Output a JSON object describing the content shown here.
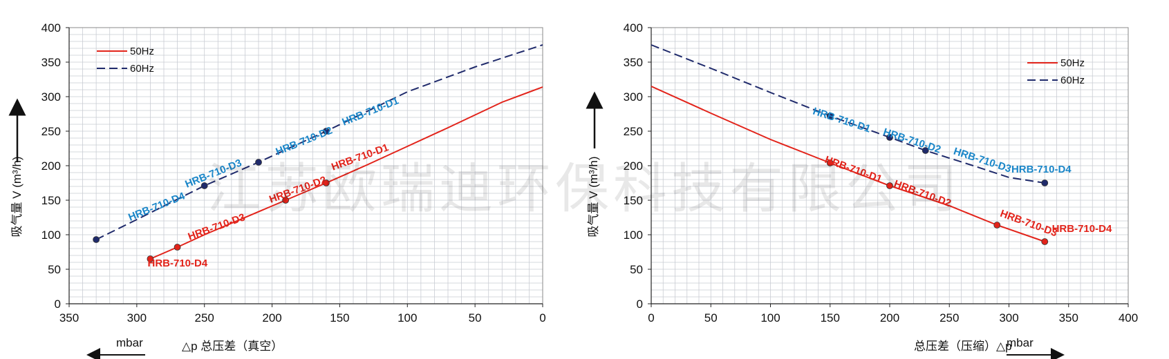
{
  "watermark": "江苏欧瑞迪环保科技有限公司",
  "colors": {
    "series50": "#e2231a",
    "series60": "#1f2a6b",
    "label50": "#e2231a",
    "label60": "#1a86c8",
    "grid": "#c9ccd3",
    "arrow": "#111111"
  },
  "chart_data": [
    {
      "type": "line",
      "title": "",
      "xlabel": "△p 总压差（真空）",
      "xunit": "mbar",
      "ylabel": "吸气量 V (m³/h)",
      "xlim": [
        350,
        0
      ],
      "ylim": [
        0,
        400
      ],
      "xticks": [
        350,
        300,
        250,
        200,
        150,
        100,
        50,
        0
      ],
      "yticks": [
        0,
        50,
        100,
        150,
        200,
        250,
        300,
        350,
        400
      ],
      "grid": true,
      "legend_position": "top-left",
      "series": [
        {
          "name": "50Hz",
          "style": "solid",
          "color": "#e2231a",
          "points": [
            [
              290,
              65
            ],
            [
              270,
              82
            ],
            [
              250,
              100
            ],
            [
              190,
              150
            ],
            [
              160,
              175
            ],
            [
              130,
              201
            ],
            [
              100,
              228
            ],
            [
              70,
              255
            ],
            [
              30,
              292
            ],
            [
              0,
              314
            ]
          ]
        },
        {
          "name": "60Hz",
          "style": "dashed",
          "color": "#1f2a6b",
          "points": [
            [
              330,
              93
            ],
            [
              300,
              122
            ],
            [
              250,
              171
            ],
            [
              210,
              205
            ],
            [
              160,
              250
            ],
            [
              100,
              307
            ],
            [
              50,
              343
            ],
            [
              0,
              375
            ]
          ]
        }
      ],
      "markers": [
        {
          "x": 290,
          "y": 65,
          "series": 0
        },
        {
          "x": 270,
          "y": 82,
          "series": 0
        },
        {
          "x": 190,
          "y": 150,
          "series": 0
        },
        {
          "x": 160,
          "y": 175,
          "series": 0
        },
        {
          "x": 330,
          "y": 93,
          "series": 1
        },
        {
          "x": 250,
          "y": 171,
          "series": 1
        },
        {
          "x": 210,
          "y": 205,
          "series": 1
        },
        {
          "x": 160,
          "y": 250,
          "series": 1
        }
      ],
      "annotations": [
        {
          "text": "HRB-710-D4",
          "x": 292,
          "y": 54,
          "color": "red",
          "rotate": 0
        },
        {
          "text": "HRB-710-D3",
          "x": 261,
          "y": 92,
          "color": "red",
          "rotate": -20
        },
        {
          "text": "HRB-710-D2",
          "x": 201,
          "y": 146,
          "color": "red",
          "rotate": -20
        },
        {
          "text": "HRB-710-D1",
          "x": 155,
          "y": 193,
          "color": "red",
          "rotate": -20
        },
        {
          "text": "HRB-710-D4",
          "x": 305,
          "y": 120,
          "color": "blue",
          "rotate": -22
        },
        {
          "text": "HRB-710-D3",
          "x": 263,
          "y": 168,
          "color": "blue",
          "rotate": -22
        },
        {
          "text": "HRB-710-D2",
          "x": 196,
          "y": 215,
          "color": "blue",
          "rotate": -22
        },
        {
          "text": "HRB-710-D1",
          "x": 147,
          "y": 258,
          "color": "blue",
          "rotate": -22
        }
      ]
    },
    {
      "type": "line",
      "title": "",
      "xlabel": "总压差（压缩）△p",
      "xunit": "mbar",
      "ylabel": "吸气量 V (m³/h)",
      "xlim": [
        0,
        400
      ],
      "ylim": [
        0,
        400
      ],
      "xticks": [
        0,
        50,
        100,
        150,
        200,
        250,
        300,
        350,
        400
      ],
      "yticks": [
        0,
        50,
        100,
        150,
        200,
        250,
        300,
        350,
        400
      ],
      "grid": true,
      "legend_position": "top-right",
      "series": [
        {
          "name": "50Hz",
          "style": "solid",
          "color": "#e2231a",
          "points": [
            [
              0,
              315
            ],
            [
              50,
              276
            ],
            [
              100,
              238
            ],
            [
              150,
              204
            ],
            [
              200,
              171
            ],
            [
              250,
              142
            ],
            [
              290,
              114
            ],
            [
              330,
              90
            ]
          ]
        },
        {
          "name": "60Hz",
          "style": "dashed",
          "color": "#1f2a6b",
          "points": [
            [
              0,
              375
            ],
            [
              50,
              341
            ],
            [
              100,
              306
            ],
            [
              150,
              272
            ],
            [
              200,
              241
            ],
            [
              230,
              222
            ],
            [
              270,
              200
            ],
            [
              300,
              183
            ],
            [
              330,
              175
            ]
          ]
        }
      ],
      "markers": [
        {
          "x": 150,
          "y": 204,
          "series": 0
        },
        {
          "x": 200,
          "y": 171,
          "series": 0
        },
        {
          "x": 290,
          "y": 114,
          "series": 0
        },
        {
          "x": 330,
          "y": 90,
          "series": 0
        },
        {
          "x": 150,
          "y": 272,
          "series": 1
        },
        {
          "x": 200,
          "y": 241,
          "series": 1
        },
        {
          "x": 230,
          "y": 222,
          "series": 1
        },
        {
          "x": 330,
          "y": 175,
          "series": 1
        }
      ],
      "annotations": [
        {
          "text": "HRB-710-D1",
          "x": 145,
          "y": 205,
          "color": "red",
          "rotate": 20
        },
        {
          "text": "HRB-710-D2",
          "x": 203,
          "y": 170,
          "color": "red",
          "rotate": 20
        },
        {
          "text": "HRB-710-D3",
          "x": 292,
          "y": 127,
          "color": "red",
          "rotate": 20
        },
        {
          "text": "HRB-710-D4",
          "x": 336,
          "y": 104,
          "color": "red",
          "rotate": 0
        },
        {
          "text": "HRB-710-D1",
          "x": 135,
          "y": 275,
          "color": "blue",
          "rotate": 18
        },
        {
          "text": "HRB-710-D2",
          "x": 194,
          "y": 245,
          "color": "blue",
          "rotate": 18
        },
        {
          "text": "HRB-710-D3",
          "x": 253,
          "y": 217,
          "color": "blue",
          "rotate": 18
        },
        {
          "text": "HRB-710-D4",
          "x": 302,
          "y": 190,
          "color": "blue",
          "rotate": 0
        }
      ]
    }
  ]
}
